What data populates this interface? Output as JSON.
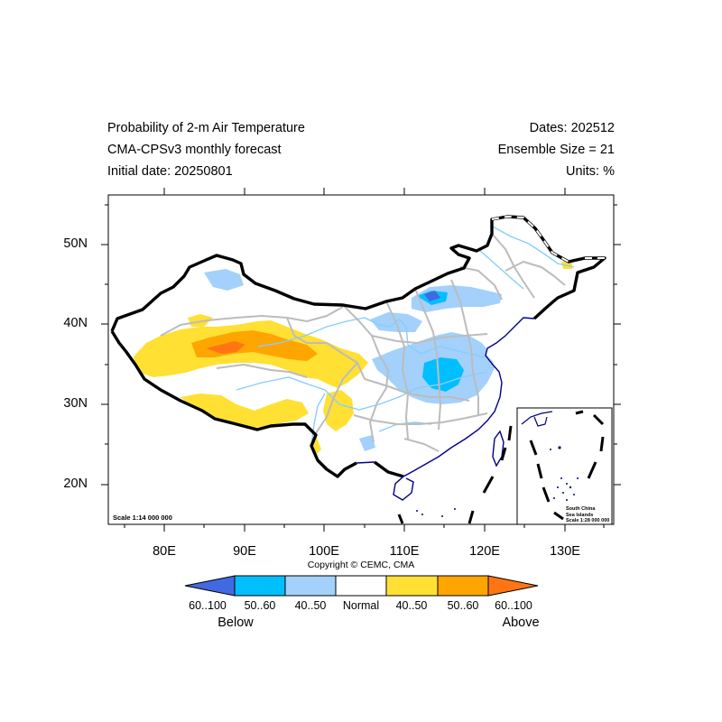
{
  "header": {
    "title_line1": "Probability of 2-m Air Temperature",
    "title_line2": "CMA-CPSv3 monthly forecast",
    "title_line3": "Initial date: 20250801",
    "dates": "Dates: 202512",
    "ensemble": "Ensemble Size = 21",
    "units": "Units: %"
  },
  "map": {
    "lat_labels": [
      "50N",
      "40N",
      "30N",
      "20N"
    ],
    "lon_labels": [
      "80E",
      "90E",
      "100E",
      "110E",
      "120E",
      "130E"
    ],
    "scale_text": "Scale 1:14 000 000",
    "inset_text": [
      "South China",
      "Sea Islands",
      "Scale 1:28 000 000"
    ],
    "copyright": "Copyright © CEMC, CMA"
  },
  "colorbar": {
    "bins": [
      {
        "label": "60..100",
        "color": "#4169e1"
      },
      {
        "label": "50..60",
        "color": "#00bfff"
      },
      {
        "label": "40..50",
        "color": "#a3d1fb"
      },
      {
        "label": "Normal",
        "color": "#ffffff"
      },
      {
        "label": "40..50",
        "color": "#ffe033"
      },
      {
        "label": "50..60",
        "color": "#ffa500"
      },
      {
        "label": "60..100",
        "color": "#ff7514"
      }
    ],
    "below_label": "Below",
    "above_label": "Above"
  },
  "colors": {
    "border": "#000000",
    "province": "#bcbcbc",
    "river": "#87cefa",
    "coast": "#00008b"
  }
}
